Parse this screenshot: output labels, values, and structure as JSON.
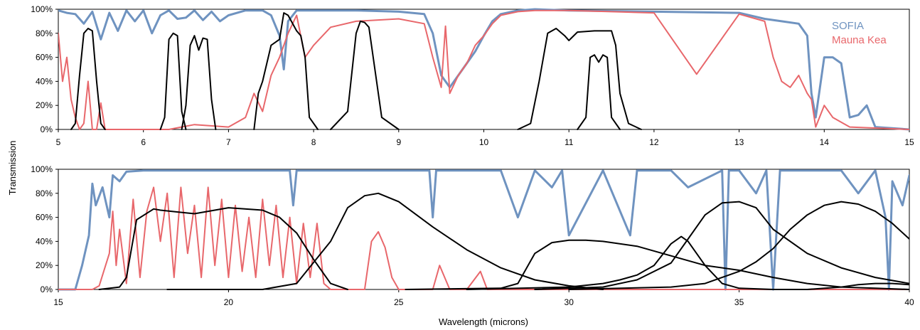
{
  "colors": {
    "sofia": "#6f93c0",
    "maunakea": "#e8676b",
    "filter": "#000000",
    "frame": "#000000"
  },
  "chart_data": [
    {
      "type": "line",
      "xlim": [
        5,
        15
      ],
      "ylim": [
        0,
        100
      ],
      "xticks": [
        "5",
        "6",
        "7",
        "8",
        "9",
        "10",
        "11",
        "12",
        "13",
        "14",
        "15"
      ],
      "yticks": [
        "0%",
        "20%",
        "40%",
        "60%",
        "80%",
        "100%"
      ],
      "legend": {
        "placement": "top-right",
        "entries": [
          "SOFIA",
          "Mauna Kea"
        ]
      },
      "series": [
        {
          "name": "SOFIA",
          "color": "#6f93c0",
          "x": [
            5.0,
            5.1,
            5.2,
            5.3,
            5.4,
            5.5,
            5.6,
            5.7,
            5.8,
            5.9,
            6.0,
            6.1,
            6.2,
            6.3,
            6.4,
            6.5,
            6.6,
            6.7,
            6.8,
            6.9,
            7.0,
            7.2,
            7.4,
            7.5,
            7.6,
            7.65,
            7.7,
            7.8,
            8.0,
            8.5,
            9.0,
            9.3,
            9.4,
            9.5,
            9.6,
            9.7,
            9.8,
            9.9,
            10.0,
            10.1,
            10.2,
            10.4,
            10.6,
            11.0,
            12.0,
            13.0,
            13.3,
            13.5,
            13.7,
            13.8,
            13.85,
            13.9,
            14.0,
            14.1,
            14.2,
            14.3,
            14.4,
            14.5,
            14.6,
            15.0
          ],
          "y": [
            99,
            97,
            96,
            88,
            98,
            75,
            97,
            82,
            99,
            90,
            99,
            80,
            95,
            99,
            92,
            93,
            99,
            91,
            98,
            90,
            95,
            99,
            99,
            95,
            78,
            50,
            90,
            99,
            99,
            99,
            98,
            96,
            80,
            45,
            35,
            45,
            55,
            65,
            78,
            90,
            96,
            99,
            100,
            99,
            98,
            97,
            92,
            90,
            88,
            78,
            30,
            10,
            60,
            60,
            55,
            10,
            12,
            20,
            2,
            0
          ]
        },
        {
          "name": "Mauna Kea",
          "color": "#e8676b",
          "x": [
            5.0,
            5.05,
            5.1,
            5.15,
            5.2,
            5.25,
            5.3,
            5.35,
            5.4,
            5.45,
            5.5,
            5.55,
            6.0,
            6.3,
            6.6,
            7.0,
            7.2,
            7.3,
            7.4,
            7.5,
            7.6,
            7.7,
            7.8,
            7.9,
            8.0,
            8.2,
            8.5,
            9.0,
            9.3,
            9.4,
            9.5,
            9.55,
            9.6,
            9.7,
            9.8,
            9.9,
            10.0,
            10.1,
            10.2,
            10.4,
            10.6,
            11.0,
            11.5,
            12.0,
            12.5,
            13.0,
            13.3,
            13.4,
            13.5,
            13.6,
            13.7,
            13.8,
            13.85,
            13.9,
            14.0,
            14.1,
            14.3,
            15.0
          ],
          "y": [
            80,
            40,
            60,
            25,
            10,
            0,
            5,
            40,
            0,
            0,
            22,
            0,
            0,
            0,
            4,
            2,
            10,
            30,
            15,
            45,
            60,
            80,
            95,
            60,
            70,
            85,
            90,
            92,
            88,
            60,
            35,
            86,
            30,
            45,
            55,
            70,
            78,
            88,
            95,
            98,
            99,
            99,
            98,
            97,
            46,
            96,
            90,
            60,
            40,
            35,
            45,
            30,
            25,
            2,
            20,
            10,
            2,
            0
          ]
        },
        {
          "name": "",
          "color": "#000000",
          "x": [
            5.15,
            5.2,
            5.25,
            5.3,
            5.35,
            5.4,
            5.45,
            5.5,
            5.55
          ],
          "y": [
            0,
            5,
            45,
            80,
            84,
            82,
            40,
            5,
            0
          ]
        },
        {
          "name": "",
          "color": "#000000",
          "x": [
            6.2,
            6.25,
            6.3,
            6.35,
            6.4,
            6.45,
            6.5
          ],
          "y": [
            0,
            10,
            75,
            80,
            78,
            15,
            0
          ]
        },
        {
          "name": "",
          "color": "#000000",
          "x": [
            6.45,
            6.5,
            6.55,
            6.6,
            6.65,
            6.7,
            6.75,
            6.8,
            6.85
          ],
          "y": [
            0,
            20,
            70,
            78,
            66,
            76,
            75,
            25,
            0
          ]
        },
        {
          "name": "",
          "color": "#000000",
          "x": [
            7.3,
            7.35,
            7.4,
            7.5,
            7.6,
            7.65,
            7.7,
            7.8,
            7.85,
            7.9,
            7.95,
            8.05
          ],
          "y": [
            0,
            30,
            40,
            70,
            75,
            97,
            95,
            82,
            78,
            60,
            10,
            0
          ]
        },
        {
          "name": "",
          "color": "#000000",
          "x": [
            8.2,
            8.4,
            8.5,
            8.55,
            8.6,
            8.65,
            8.7,
            8.8,
            9.0
          ],
          "y": [
            0,
            15,
            80,
            90,
            89,
            85,
            60,
            10,
            0
          ]
        },
        {
          "name": "",
          "color": "#000000",
          "x": [
            10.4,
            10.55,
            10.65,
            10.75,
            10.85,
            10.95,
            11.0,
            11.1,
            11.3,
            11.5,
            11.55,
            11.6,
            11.7,
            11.85
          ],
          "y": [
            0,
            5,
            40,
            80,
            84,
            78,
            74,
            81,
            82,
            82,
            70,
            30,
            5,
            0
          ]
        },
        {
          "name": "",
          "color": "#000000",
          "x": [
            11.1,
            11.2,
            11.25,
            11.3,
            11.35,
            11.4,
            11.45,
            11.5,
            11.6
          ],
          "y": [
            0,
            10,
            60,
            62,
            56,
            62,
            60,
            10,
            0
          ]
        }
      ]
    },
    {
      "type": "line",
      "xlim": [
        15,
        40
      ],
      "ylim": [
        0,
        100
      ],
      "xticks": [
        "15",
        "20",
        "25",
        "30",
        "35",
        "40"
      ],
      "yticks": [
        "0%",
        "20%",
        "40%",
        "60%",
        "80%",
        "100%"
      ],
      "xlabel": "Wavelength (microns)",
      "ylabel": "Transmission",
      "series": [
        {
          "name": "SOFIA",
          "color": "#6f93c0",
          "x": [
            15.0,
            15.5,
            15.7,
            15.9,
            16.0,
            16.1,
            16.3,
            16.5,
            16.6,
            16.8,
            17.0,
            17.5,
            18.0,
            19.0,
            20.0,
            21.0,
            21.8,
            21.9,
            22.0,
            22.5,
            23.0,
            24.0,
            25.0,
            25.9,
            26.0,
            26.1,
            27.0,
            28.0,
            28.5,
            29.0,
            29.5,
            29.8,
            30.0,
            31.0,
            31.8,
            32.0,
            33.0,
            33.5,
            34.5,
            34.6,
            34.7,
            35.0,
            35.5,
            35.8,
            36.0,
            36.2,
            37.0,
            38.0,
            38.5,
            39.0,
            39.3,
            39.4,
            39.5,
            39.8,
            40.0
          ],
          "y": [
            0,
            0,
            20,
            45,
            88,
            70,
            85,
            60,
            95,
            90,
            98,
            99,
            99,
            99,
            99,
            99,
            99,
            70,
            99,
            99,
            99,
            99,
            99,
            99,
            60,
            99,
            99,
            99,
            60,
            99,
            85,
            99,
            45,
            99,
            45,
            99,
            99,
            85,
            99,
            0,
            99,
            99,
            80,
            99,
            0,
            99,
            99,
            99,
            80,
            99,
            60,
            0,
            90,
            70,
            95
          ]
        },
        {
          "name": "Mauna Kea",
          "color": "#e8676b",
          "x": [
            15.0,
            16.0,
            16.2,
            16.5,
            16.6,
            16.7,
            16.8,
            17.0,
            17.2,
            17.4,
            17.6,
            17.8,
            18.0,
            18.2,
            18.4,
            18.6,
            18.8,
            19.0,
            19.2,
            19.4,
            19.6,
            19.8,
            20.0,
            20.2,
            20.4,
            20.6,
            20.8,
            21.0,
            21.2,
            21.4,
            21.6,
            21.8,
            22.0,
            22.2,
            22.4,
            22.6,
            22.8,
            23.0,
            24.0,
            24.2,
            24.4,
            24.6,
            24.8,
            25.0,
            26.0,
            26.2,
            26.5,
            27.0,
            27.4,
            27.6,
            28.0,
            30.0,
            40.0
          ],
          "y": [
            0,
            0,
            3,
            30,
            65,
            20,
            50,
            5,
            75,
            10,
            65,
            85,
            40,
            80,
            10,
            85,
            30,
            70,
            10,
            85,
            20,
            75,
            10,
            70,
            15,
            60,
            10,
            75,
            20,
            70,
            10,
            60,
            5,
            55,
            10,
            55,
            5,
            0,
            0,
            40,
            48,
            35,
            10,
            0,
            0,
            20,
            0,
            0,
            15,
            0,
            0,
            0,
            0
          ]
        },
        {
          "name": "",
          "color": "#000000",
          "x": [
            16.2,
            16.8,
            17.0,
            17.3,
            17.8,
            18.0,
            19.0,
            20.0,
            21.0,
            21.5,
            22.0,
            22.5,
            23.0,
            23.5
          ],
          "y": [
            0,
            2,
            10,
            58,
            67,
            66,
            63,
            68,
            66,
            60,
            47,
            25,
            5,
            0
          ]
        },
        {
          "name": "",
          "color": "#000000",
          "x": [
            18.2,
            21.0,
            22.0,
            23.0,
            23.5,
            24.0,
            24.4,
            25.0,
            26.0,
            27.0,
            28.0,
            29.0,
            30.0,
            31.0
          ],
          "y": [
            0,
            0,
            5,
            40,
            68,
            78,
            80,
            73,
            52,
            33,
            18,
            8,
            3,
            0
          ]
        },
        {
          "name": "",
          "color": "#000000",
          "x": [
            25.2,
            28.0,
            28.5,
            29.0,
            29.5,
            30.0,
            30.5,
            31.0,
            32.0,
            33.0,
            34.0,
            35.0,
            36.0,
            37.0,
            38.0,
            39.0,
            40.0
          ],
          "y": [
            0,
            1,
            5,
            30,
            39,
            41,
            41,
            40,
            36,
            28,
            20,
            16,
            10,
            5,
            2,
            1,
            0
          ]
        },
        {
          "name": "",
          "color": "#000000",
          "x": [
            27.0,
            30.0,
            31.0,
            31.5,
            32.0,
            32.5,
            33.0,
            33.3,
            33.5,
            34.0,
            34.5,
            35.0,
            36.0
          ],
          "y": [
            0,
            2,
            5,
            8,
            12,
            20,
            38,
            44,
            40,
            20,
            5,
            1,
            0
          ]
        },
        {
          "name": "",
          "color": "#000000",
          "x": [
            29.0,
            31.0,
            32.0,
            33.0,
            33.5,
            34.0,
            34.5,
            35.0,
            35.5,
            36.0,
            37.0,
            38.0,
            39.0,
            40.0
          ],
          "y": [
            0,
            2,
            8,
            22,
            42,
            62,
            72,
            73,
            68,
            50,
            30,
            18,
            10,
            5
          ]
        },
        {
          "name": "",
          "color": "#000000",
          "x": [
            30.0,
            33.0,
            34.0,
            35.0,
            35.5,
            36.0,
            36.5,
            37.0,
            37.5,
            38.0,
            38.5,
            39.0,
            39.5,
            40.0
          ],
          "y": [
            0,
            2,
            5,
            15,
            23,
            34,
            50,
            62,
            70,
            73,
            71,
            65,
            55,
            42
          ]
        },
        {
          "name": "",
          "color": "#000000",
          "x": [
            36.0,
            37.0,
            38.0,
            38.5,
            39.0,
            39.5,
            40.0
          ],
          "y": [
            0,
            0,
            2,
            4,
            5,
            5,
            4
          ]
        }
      ]
    }
  ]
}
